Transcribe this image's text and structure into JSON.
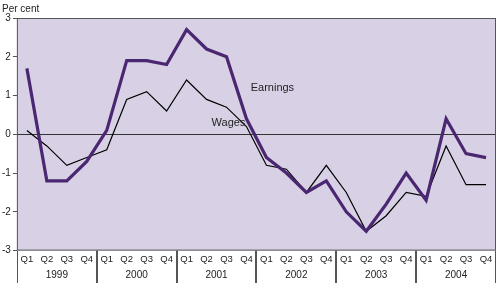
{
  "chart_data": {
    "type": "line",
    "y_label": "Per cent",
    "categories": [
      "Q1",
      "Q2",
      "Q3",
      "Q4",
      "Q1",
      "Q2",
      "Q3",
      "Q4",
      "Q1",
      "Q2",
      "Q3",
      "Q4",
      "Q1",
      "Q2",
      "Q3",
      "Q4",
      "Q1",
      "Q2",
      "Q3",
      "Q4",
      "Q1",
      "Q2",
      "Q3",
      "Q4"
    ],
    "category_groups": [
      "1999",
      "2000",
      "2001",
      "2002",
      "2003",
      "2004"
    ],
    "series": [
      {
        "name": "Earnings",
        "color": "#4a2770",
        "values": [
          1.7,
          -1.2,
          -1.2,
          -0.7,
          0.1,
          1.9,
          1.9,
          1.8,
          2.7,
          2.2,
          2.0,
          0.4,
          -0.6,
          -1.0,
          -1.5,
          -1.2,
          -2.0,
          -2.5,
          -1.8,
          -1.0,
          -1.7,
          0.4,
          -0.5,
          -0.6
        ]
      },
      {
        "name": "Wages",
        "color": "#000000",
        "values": [
          0.1,
          -0.3,
          -0.8,
          -0.6,
          -0.4,
          0.9,
          1.1,
          0.6,
          1.4,
          0.9,
          0.7,
          0.2,
          -0.8,
          -0.9,
          -1.5,
          -0.8,
          -1.5,
          -2.5,
          -2.1,
          -1.5,
          -1.6,
          -0.3,
          -1.3,
          -1.3
        ]
      }
    ],
    "ylim": [
      -3,
      3
    ],
    "yticks": [
      -3,
      -2,
      -1,
      0,
      1,
      2,
      3
    ],
    "grid": false,
    "annotations": [
      {
        "text": "Earnings",
        "x": 12.3,
        "y": 1.2
      },
      {
        "text": "Wages",
        "x": 10.1,
        "y": 0.3
      }
    ]
  }
}
